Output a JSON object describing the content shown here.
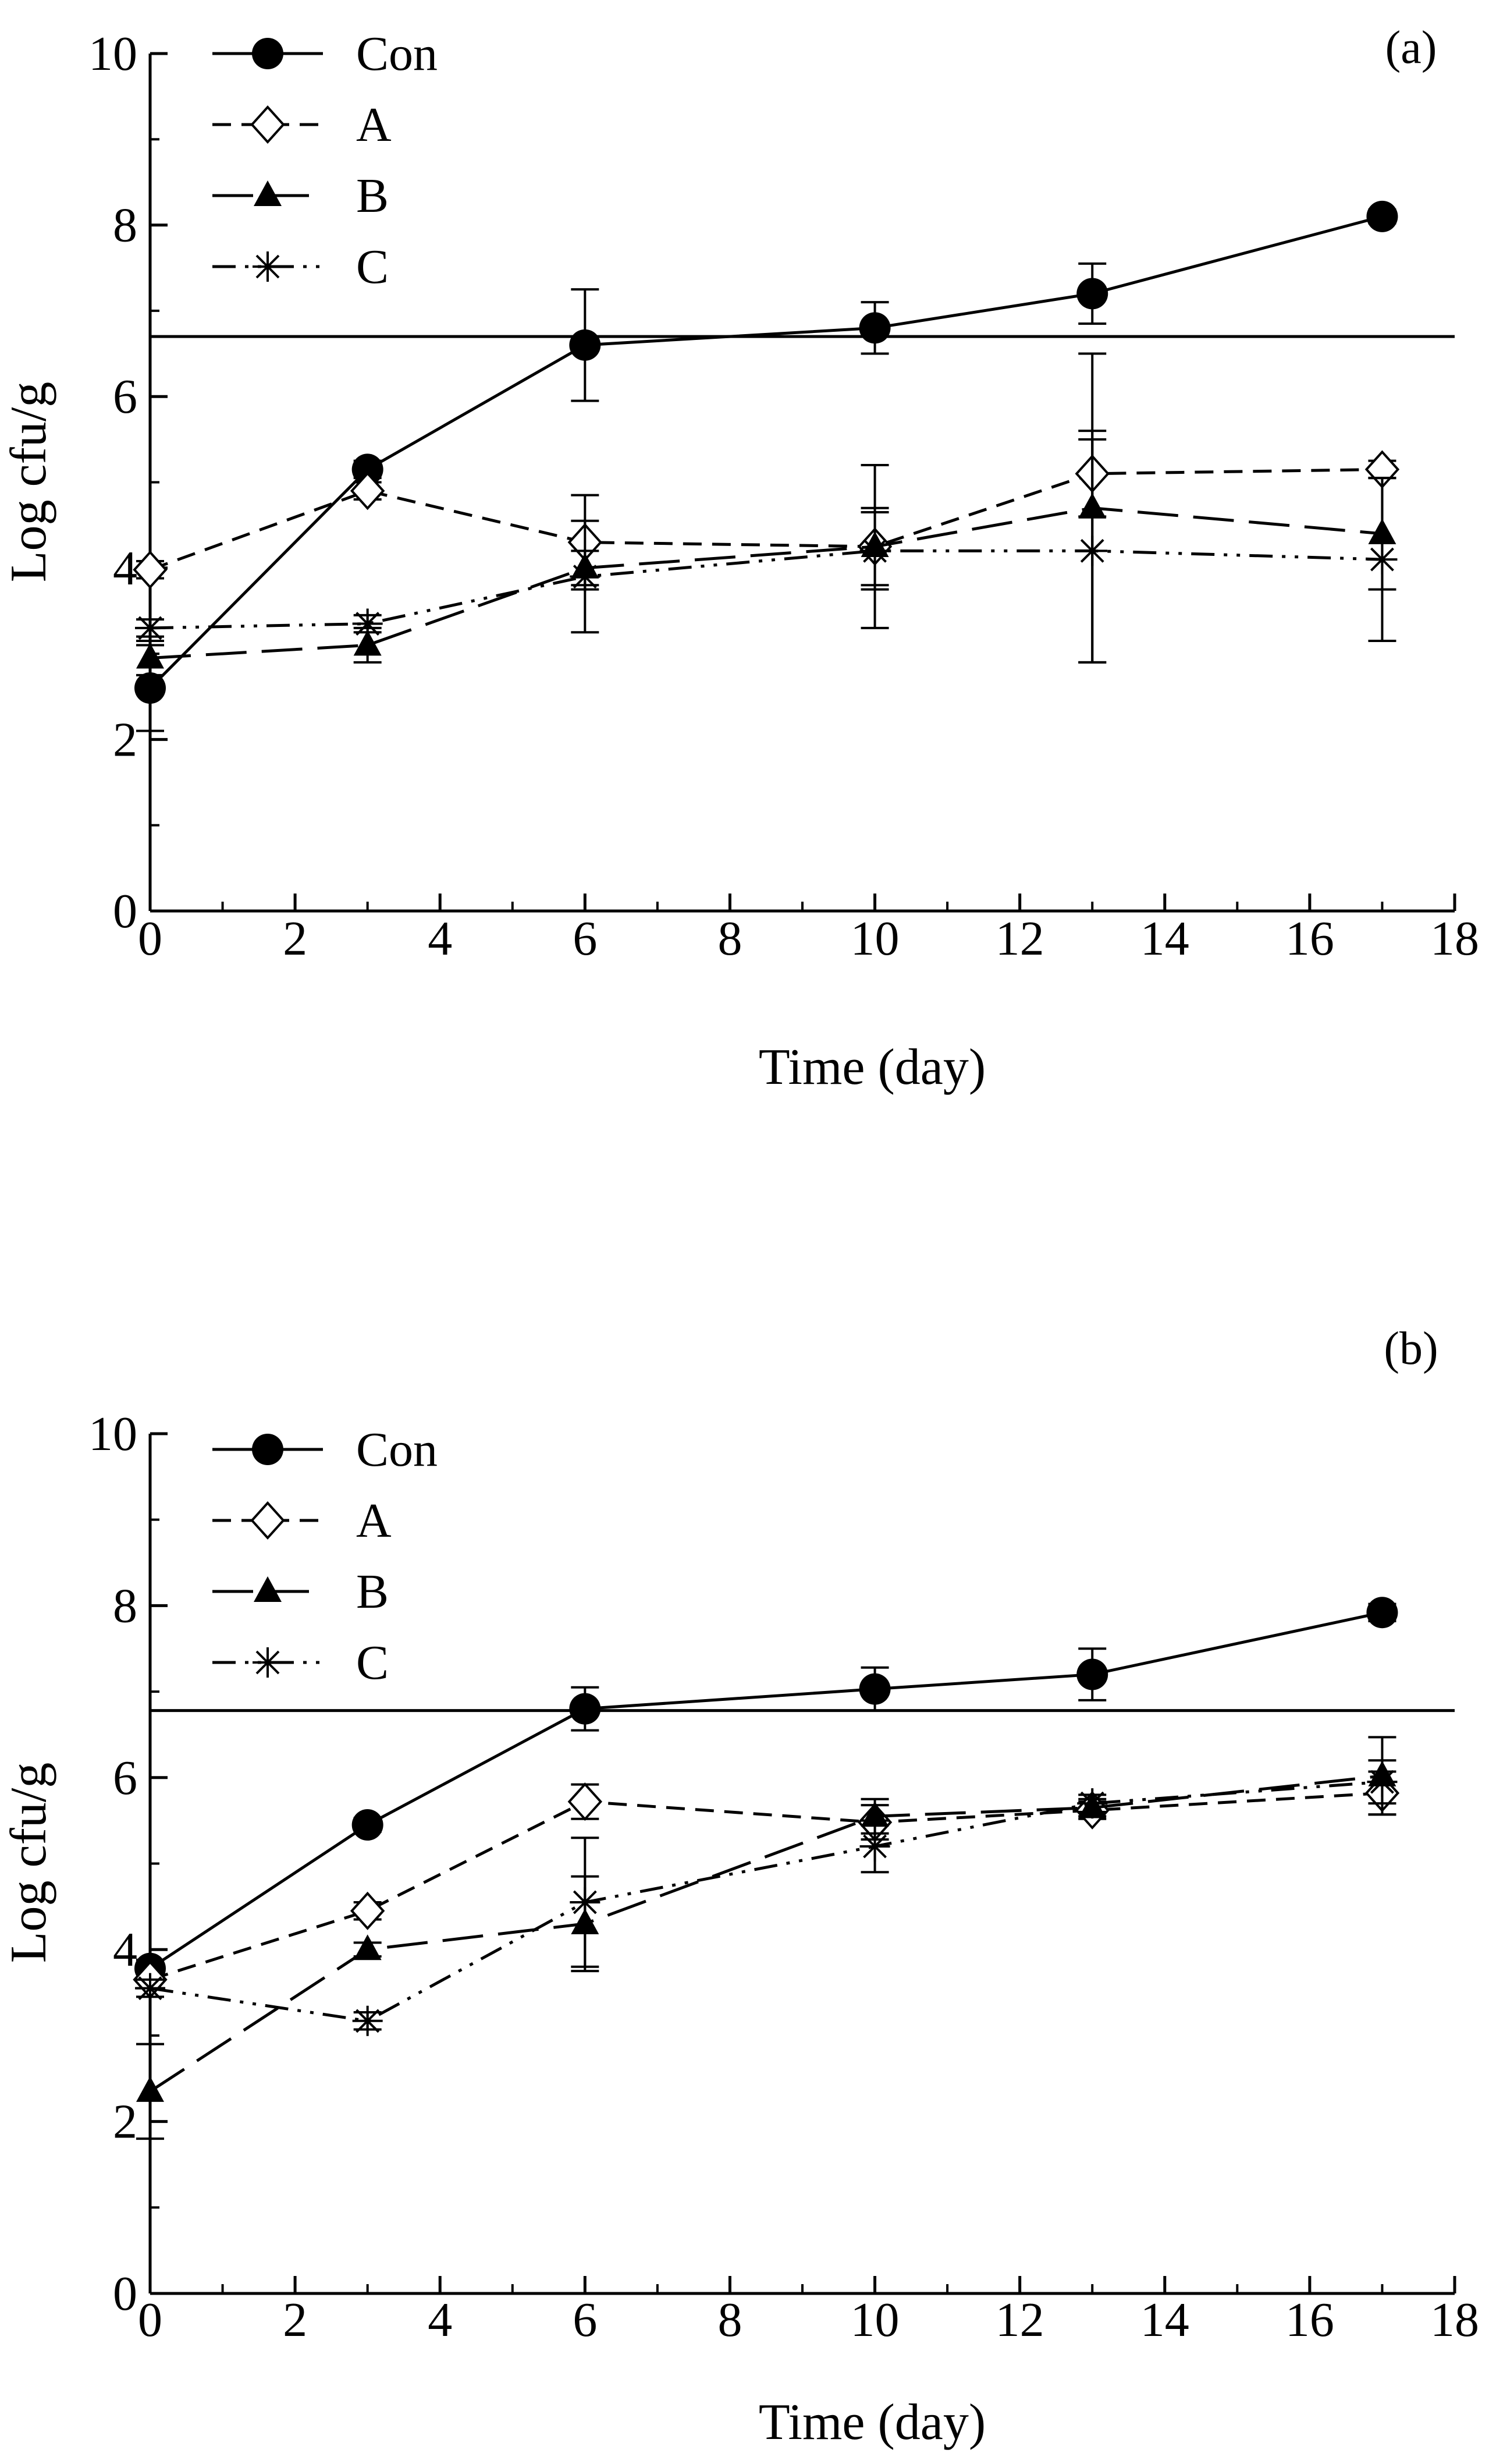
{
  "chart_data": [
    {
      "type": "line",
      "panel_label": "(a)",
      "xlabel": "Time (day)",
      "ylabel": "Log cfu/g",
      "xlim": [
        0,
        18
      ],
      "ylim": [
        0,
        10
      ],
      "xticks": [
        "0",
        "2",
        "4",
        "6",
        "8",
        "10",
        "12",
        "14",
        "16",
        "18"
      ],
      "yticks": [
        "0",
        "2",
        "4",
        "6",
        "8",
        "10"
      ],
      "x": [
        0,
        3,
        6,
        10,
        13,
        17
      ],
      "reference_line": 6.7,
      "legend_position": "top-left",
      "series": [
        {
          "name": "Con",
          "marker": "circle",
          "dash": "solid",
          "values": [
            2.6,
            5.15,
            6.6,
            6.8,
            7.2,
            8.1
          ],
          "errors": [
            0.5,
            0.1,
            0.65,
            0.3,
            0.35,
            0.08
          ]
        },
        {
          "name": "A",
          "marker": "diamond",
          "dash": "dashed",
          "values": [
            3.98,
            4.9,
            4.3,
            4.25,
            5.1,
            5.15
          ],
          "errors": [
            0.1,
            0.1,
            0.55,
            0.45,
            0.5,
            0.1
          ]
        },
        {
          "name": "B",
          "marker": "triangle",
          "dash": "longdash",
          "values": [
            2.95,
            3.1,
            4.0,
            4.25,
            4.7,
            4.4
          ],
          "errors": [
            0.2,
            0.2,
            0.2,
            0.95,
            1.8,
            0.65
          ]
        },
        {
          "name": "C",
          "marker": "star",
          "dash": "dashdotdot",
          "values": [
            3.3,
            3.35,
            3.9,
            4.2,
            4.2,
            4.1
          ],
          "errors": [
            0.1,
            0.1,
            0.65,
            0.45,
            1.3,
            0.95
          ]
        }
      ]
    },
    {
      "type": "line",
      "panel_label": "(b)",
      "xlabel": "Time (day)",
      "ylabel": "Log cfu/g",
      "xlim": [
        0,
        18
      ],
      "ylim": [
        0,
        10
      ],
      "xticks": [
        "0",
        "2",
        "4",
        "6",
        "8",
        "10",
        "12",
        "14",
        "16",
        "18"
      ],
      "yticks": [
        "0",
        "2",
        "4",
        "6",
        "8",
        "10"
      ],
      "x": [
        0,
        3,
        6,
        10,
        13,
        17
      ],
      "reference_line": 6.78,
      "legend_position": "top-left",
      "series": [
        {
          "name": "Con",
          "marker": "circle",
          "dash": "solid",
          "values": [
            3.78,
            5.45,
            6.8,
            7.03,
            7.2,
            7.92
          ],
          "errors": [
            0.1,
            0.08,
            0.25,
            0.25,
            0.3,
            0.1
          ]
        },
        {
          "name": "A",
          "marker": "diamond",
          "dash": "dashed",
          "values": [
            3.65,
            4.45,
            5.72,
            5.48,
            5.62,
            5.82
          ],
          "errors": [
            0.1,
            0.1,
            0.2,
            0.2,
            0.1,
            0.25
          ]
        },
        {
          "name": "B",
          "marker": "triangle",
          "dash": "longdash",
          "values": [
            2.35,
            4.0,
            4.3,
            5.55,
            5.65,
            6.02
          ],
          "errors": [
            0.55,
            0.08,
            0.55,
            0.2,
            0.1,
            0.45
          ]
        },
        {
          "name": "C",
          "marker": "star",
          "dash": "dashdotdot",
          "values": [
            3.55,
            3.17,
            4.55,
            5.2,
            5.7,
            5.95
          ],
          "errors": [
            0.1,
            0.1,
            0.75,
            0.3,
            0.1,
            0.25
          ]
        }
      ]
    }
  ]
}
